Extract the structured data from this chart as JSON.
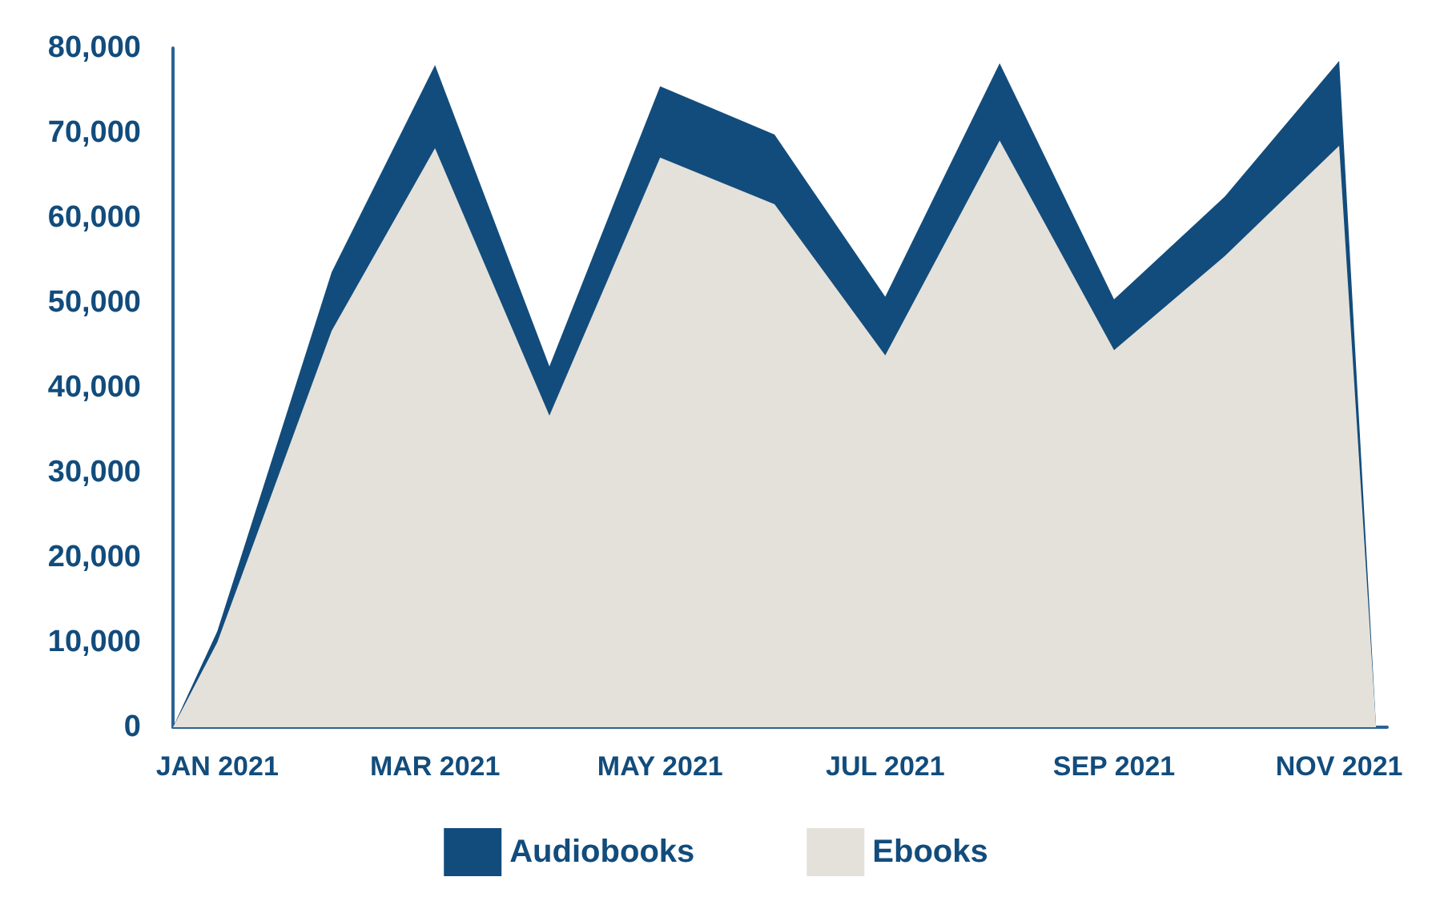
{
  "chart_data": {
    "type": "area",
    "stacked": true,
    "x": [
      "2020-12-20",
      "2021-01-01",
      "2021-02-01",
      "2021-03-01",
      "2021-04-01",
      "2021-05-01",
      "2021-06-01",
      "2021-07-01",
      "2021-08-01",
      "2021-09-01",
      "2021-10-01",
      "2021-11-01",
      "2021-11-11"
    ],
    "series": [
      {
        "name": "Ebooks",
        "color": "#e4e1da",
        "values": [
          0,
          10000,
          46700,
          68200,
          36700,
          67100,
          61600,
          43800,
          69100,
          44400,
          55500,
          68500,
          0
        ]
      },
      {
        "name": "Audiobooks",
        "color": "#124c7c",
        "values": [
          0,
          1300,
          6900,
          9800,
          5800,
          8400,
          8200,
          6900,
          9100,
          6000,
          7000,
          10000,
          0
        ]
      }
    ],
    "xlim": [
      "2020-12-20",
      "2021-11-14"
    ],
    "xticks": [
      {
        "value": "2021-01-01",
        "label": "JAN 2021"
      },
      {
        "value": "2021-03-01",
        "label": "MAR 2021"
      },
      {
        "value": "2021-05-01",
        "label": "MAY 2021"
      },
      {
        "value": "2021-07-01",
        "label": "JUL 2021"
      },
      {
        "value": "2021-09-01",
        "label": "SEP 2021"
      },
      {
        "value": "2021-11-01",
        "label": "NOV 2021"
      }
    ],
    "ylim": [
      0,
      80000
    ],
    "yticks": [
      0,
      {
        "value": 10000,
        "label": "10,000"
      },
      {
        "value": 20000,
        "label": "20,000"
      },
      {
        "value": 30000,
        "label": "30,000"
      },
      {
        "value": 40000,
        "label": "40,000"
      },
      {
        "value": 50000,
        "label": "50,000"
      },
      {
        "value": 60000,
        "label": "60,000"
      },
      {
        "value": 70000,
        "label": "70,000"
      },
      {
        "value": 80000,
        "label": "80,000"
      }
    ],
    "grid": false,
    "legend": "bottom"
  }
}
